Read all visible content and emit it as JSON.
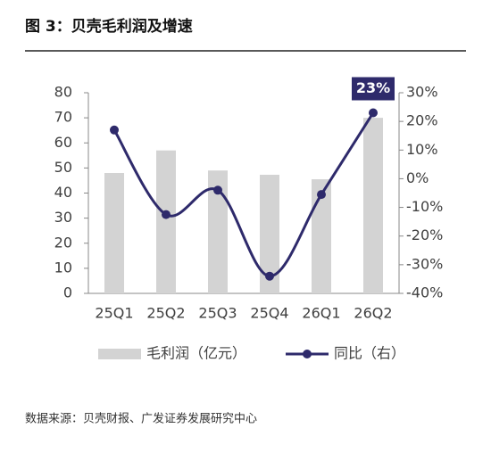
{
  "chart_data": {
    "type": "bar_line",
    "title": "图 3：贝壳毛利润及增速",
    "source": "数据来源：贝壳财报、广发证券发展研究中心",
    "categories": [
      "25Q1",
      "25Q2",
      "25Q3",
      "25Q4",
      "26Q1",
      "26Q2"
    ],
    "series": [
      {
        "name": "毛利润（亿元）",
        "type": "bar",
        "color": "#d3d3d3",
        "values": [
          48,
          57,
          49,
          47.3,
          45.5,
          70
        ]
      },
      {
        "name": "同比（右）",
        "type": "line",
        "axis": "y2",
        "color": "#2e2a6b",
        "values": [
          17,
          -12.5,
          -4,
          -34,
          -5.5,
          23
        ],
        "value_labels": [
          null,
          null,
          null,
          null,
          null,
          "23%"
        ]
      }
    ],
    "ylim": [
      0,
      80
    ],
    "yticks": [
      0,
      10,
      20,
      30,
      40,
      50,
      60,
      70,
      80
    ],
    "y2lim": [
      -40,
      30
    ],
    "y2ticks": [
      {
        "value": -40,
        "label": "-40%"
      },
      {
        "value": -30,
        "label": "-30%"
      },
      {
        "value": -20,
        "label": "-20%"
      },
      {
        "value": -10,
        "label": "-10%"
      },
      {
        "value": 0,
        "label": "0%"
      },
      {
        "value": 10,
        "label": "10%"
      },
      {
        "value": 20,
        "label": "20%"
      },
      {
        "value": 30,
        "label": "30%"
      }
    ]
  }
}
